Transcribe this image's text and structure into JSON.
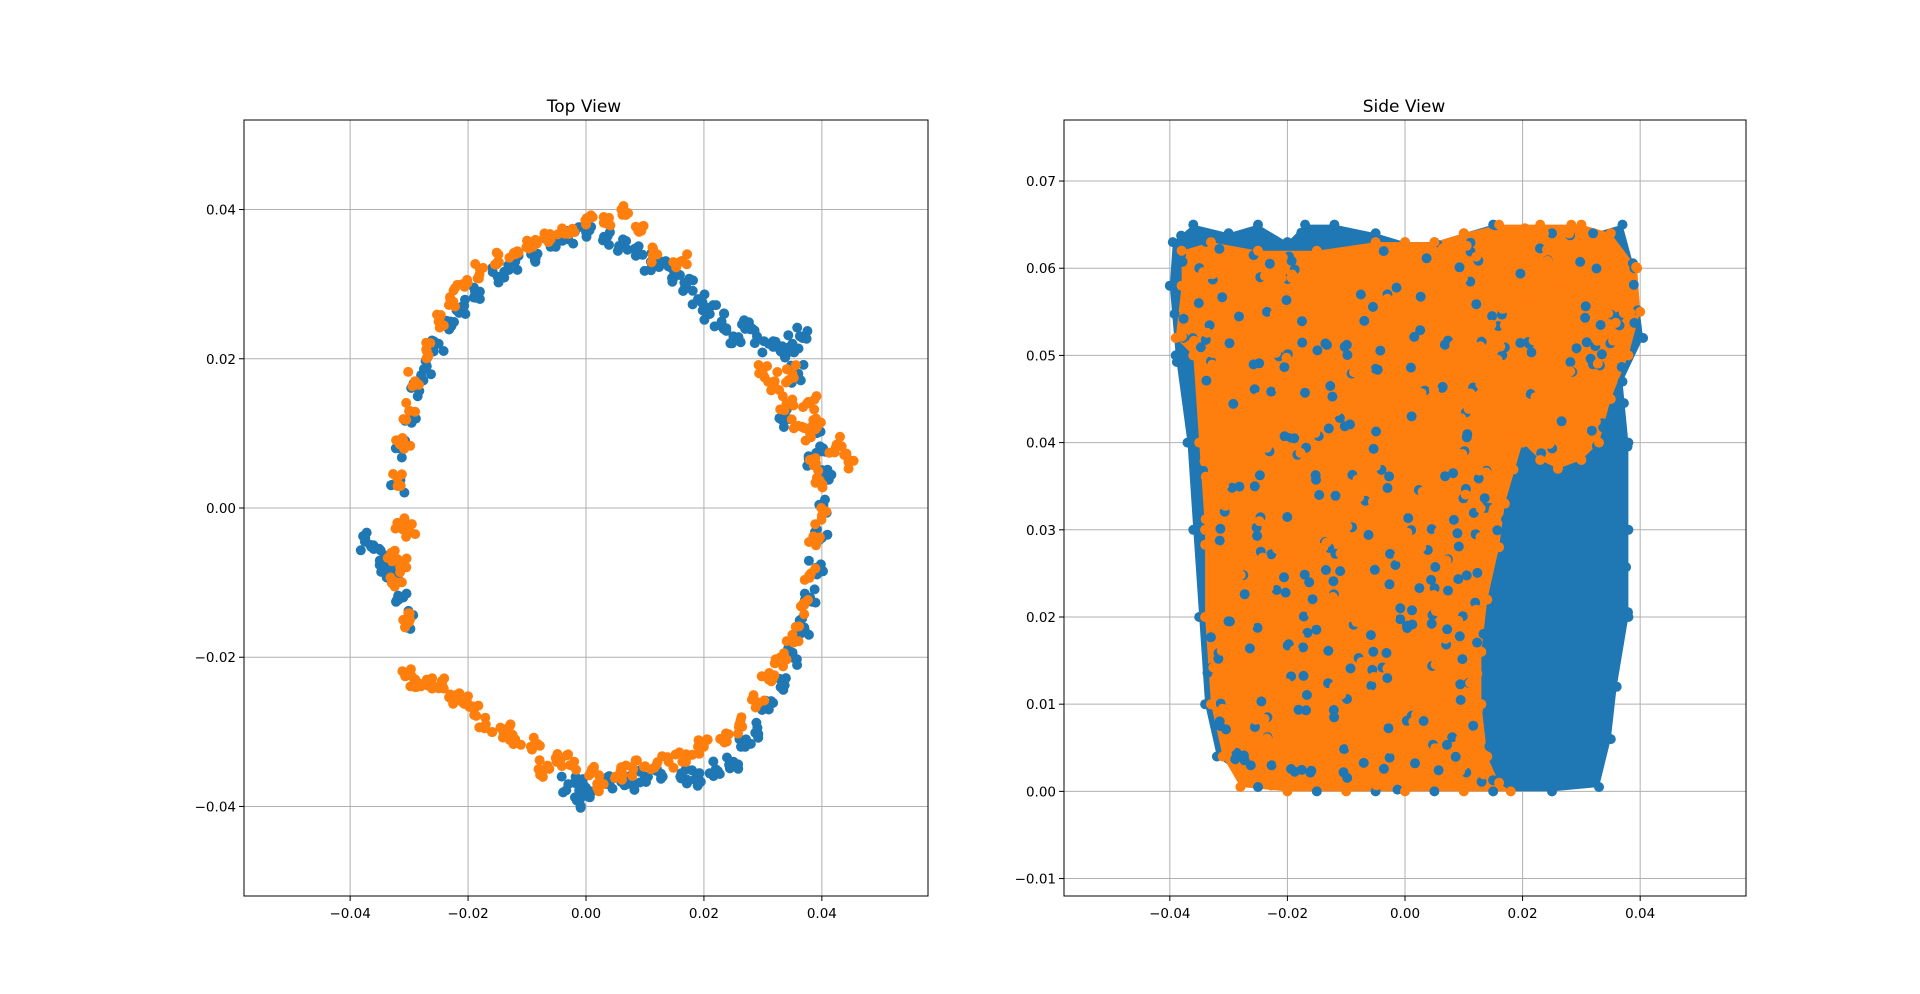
{
  "colors": {
    "series_blue": "#1f77b4",
    "series_orange": "#ff7f0e",
    "grid": "#b0b0b0",
    "axes": "#000000"
  },
  "chart_data": [
    {
      "type": "scatter",
      "title": "Top View",
      "xlabel": "",
      "ylabel": "",
      "xlim": [
        -0.058,
        0.058
      ],
      "ylim": [
        -0.052,
        0.052
      ],
      "xticks": [
        -0.04,
        -0.02,
        0.0,
        0.02,
        0.04
      ],
      "yticks": [
        -0.04,
        -0.02,
        0.0,
        0.02,
        0.04
      ],
      "xtick_labels": [
        "−0.04",
        "−0.02",
        "0.00",
        "0.02",
        "0.04"
      ],
      "ytick_labels": [
        "−0.04",
        "−0.02",
        "0.00",
        "0.02",
        "0.04"
      ],
      "grid": true,
      "series": [
        {
          "color": "#1f77b4",
          "points": [
            [
              -0.0375,
              -0.0045
            ],
            [
              -0.036,
              -0.0055
            ],
            [
              -0.0345,
              -0.0075
            ],
            [
              -0.033,
              -0.0085
            ],
            [
              -0.031,
              -0.012
            ],
            [
              -0.03,
              -0.015
            ],
            [
              -0.032,
              0.003
            ],
            [
              -0.0315,
              0.008
            ],
            [
              -0.03,
              0.012
            ],
            [
              -0.0285,
              0.016
            ],
            [
              -0.027,
              0.019
            ],
            [
              -0.025,
              0.022
            ],
            [
              -0.023,
              0.025
            ],
            [
              -0.021,
              0.027
            ],
            [
              -0.018,
              0.029
            ],
            [
              -0.015,
              0.031
            ],
            [
              -0.012,
              0.033
            ],
            [
              -0.009,
              0.034
            ],
            [
              -0.006,
              0.035
            ],
            [
              -0.003,
              0.036
            ],
            [
              0.0,
              0.037
            ],
            [
              0.003,
              0.036
            ],
            [
              0.006,
              0.035
            ],
            [
              0.009,
              0.034
            ],
            [
              0.011,
              0.033
            ],
            [
              0.013,
              0.033
            ],
            [
              0.015,
              0.031
            ],
            [
              0.017,
              0.03
            ],
            [
              0.019,
              0.028
            ],
            [
              0.021,
              0.026
            ],
            [
              0.023,
              0.025
            ],
            [
              0.025,
              0.023
            ],
            [
              0.027,
              0.024
            ],
            [
              0.029,
              0.023
            ],
            [
              0.031,
              0.022
            ],
            [
              0.033,
              0.021
            ],
            [
              0.035,
              0.022
            ],
            [
              0.037,
              0.023
            ],
            [
              0.039,
              0.011
            ],
            [
              0.04,
              0.008
            ],
            [
              0.041,
              0.004
            ],
            [
              0.04,
              0.0
            ],
            [
              0.04,
              -0.004
            ],
            [
              0.039,
              -0.008
            ],
            [
              0.038,
              -0.012
            ],
            [
              0.037,
              -0.016
            ],
            [
              0.035,
              -0.02
            ],
            [
              0.033,
              -0.024
            ],
            [
              0.031,
              -0.027
            ],
            [
              0.029,
              -0.03
            ],
            [
              0.027,
              -0.032
            ],
            [
              0.025,
              -0.034
            ],
            [
              0.022,
              -0.035
            ],
            [
              0.019,
              -0.036
            ],
            [
              0.016,
              -0.036
            ],
            [
              0.013,
              -0.036
            ],
            [
              0.01,
              -0.036
            ],
            [
              0.007,
              -0.037
            ],
            [
              0.004,
              -0.037
            ],
            [
              0.001,
              -0.038
            ],
            [
              -0.001,
              -0.039
            ],
            [
              -0.003,
              -0.037
            ],
            [
              0.0,
              -0.0375
            ],
            [
              0.034,
              0.012
            ],
            [
              0.036,
              0.018
            ],
            [
              0.0385,
              0.006
            ]
          ]
        },
        {
          "color": "#ff7f0e",
          "points": [
            [
              -0.032,
              0.004
            ],
            [
              -0.031,
              0.009
            ],
            [
              -0.03,
              0.013
            ],
            [
              -0.029,
              0.017
            ],
            [
              -0.027,
              0.021
            ],
            [
              -0.025,
              0.025
            ],
            [
              -0.023,
              0.028
            ],
            [
              -0.021,
              0.03
            ],
            [
              -0.018,
              0.032
            ],
            [
              -0.015,
              0.033
            ],
            [
              -0.012,
              0.034
            ],
            [
              -0.009,
              0.035
            ],
            [
              -0.006,
              0.036
            ],
            [
              -0.003,
              0.037
            ],
            [
              0.0,
              0.038
            ],
            [
              0.003,
              0.039
            ],
            [
              0.006,
              0.04
            ],
            [
              0.009,
              0.037
            ],
            [
              0.012,
              0.034
            ],
            [
              0.016,
              0.033
            ],
            [
              0.032,
              0.017
            ],
            [
              0.034,
              0.014
            ],
            [
              0.036,
              0.011
            ],
            [
              0.038,
              0.01
            ],
            [
              0.039,
              0.006
            ],
            [
              0.04,
              0.003
            ],
            [
              0.04,
              -0.001
            ],
            [
              0.039,
              -0.005
            ],
            [
              0.038,
              -0.009
            ],
            [
              0.037,
              -0.013
            ],
            [
              0.035,
              -0.017
            ],
            [
              0.033,
              -0.02
            ],
            [
              0.031,
              -0.023
            ],
            [
              0.029,
              -0.026
            ],
            [
              0.026,
              -0.029
            ],
            [
              0.023,
              -0.031
            ],
            [
              0.02,
              -0.032
            ],
            [
              0.017,
              -0.033
            ],
            [
              0.014,
              -0.034
            ],
            [
              0.011,
              -0.035
            ],
            [
              0.008,
              -0.035
            ],
            [
              0.005,
              -0.036
            ],
            [
              0.003,
              -0.037
            ],
            [
              0.001,
              -0.035
            ],
            [
              -0.002,
              -0.034
            ],
            [
              -0.005,
              -0.034
            ],
            [
              -0.007,
              -0.035
            ],
            [
              -0.009,
              -0.032
            ],
            [
              -0.012,
              -0.031
            ],
            [
              -0.014,
              -0.03
            ],
            [
              -0.017,
              -0.029
            ],
            [
              -0.019,
              -0.027
            ],
            [
              -0.021,
              -0.026
            ],
            [
              -0.023,
              -0.025
            ],
            [
              -0.025,
              -0.024
            ],
            [
              -0.027,
              -0.023
            ],
            [
              -0.029,
              -0.024
            ],
            [
              -0.03,
              -0.022
            ],
            [
              -0.031,
              -0.015
            ],
            [
              -0.032,
              -0.01
            ],
            [
              -0.033,
              -0.006
            ],
            [
              -0.032,
              -0.002
            ],
            [
              -0.031,
              -0.008
            ],
            [
              -0.03,
              -0.003
            ],
            [
              0.038,
              0.014
            ],
            [
              0.039,
              0.012
            ],
            [
              0.0425,
              0.0085
            ],
            [
              0.0445,
              0.0065
            ],
            [
              0.035,
              0.018
            ],
            [
              0.03,
              0.018
            ]
          ]
        }
      ]
    },
    {
      "type": "scatter",
      "title": "Side View",
      "xlabel": "",
      "ylabel": "",
      "xlim": [
        -0.058,
        0.058
      ],
      "ylim": [
        -0.012,
        0.077
      ],
      "xticks": [
        -0.04,
        -0.02,
        0.0,
        0.02,
        0.04
      ],
      "yticks": [
        -0.01,
        0.0,
        0.01,
        0.02,
        0.03,
        0.04,
        0.05,
        0.06,
        0.07
      ],
      "xtick_labels": [
        "−0.04",
        "−0.02",
        "0.00",
        "0.02",
        "0.04"
      ],
      "ytick_labels": [
        "−0.01",
        "0.00",
        "0.01",
        "0.02",
        "0.03",
        "0.04",
        "0.05",
        "0.06",
        "0.07"
      ],
      "grid": true,
      "series": [
        {
          "color": "#1f77b4",
          "region": {
            "outline": [
              [
                -0.0395,
                0.063
              ],
              [
                -0.036,
                0.065
              ],
              [
                -0.03,
                0.064
              ],
              [
                -0.025,
                0.065
              ],
              [
                -0.02,
                0.063
              ],
              [
                -0.017,
                0.065
              ],
              [
                -0.012,
                0.065
              ],
              [
                -0.005,
                0.064
              ],
              [
                0.0,
                0.063
              ],
              [
                0.005,
                0.063
              ],
              [
                0.01,
                0.064
              ],
              [
                0.015,
                0.065
              ],
              [
                0.025,
                0.064
              ],
              [
                0.032,
                0.064
              ],
              [
                0.037,
                0.065
              ],
              [
                0.039,
                0.06
              ],
              [
                0.0405,
                0.052
              ],
              [
                0.037,
                0.047
              ],
              [
                0.038,
                0.04
              ],
              [
                0.038,
                0.03
              ],
              [
                0.038,
                0.02
              ],
              [
                0.036,
                0.012
              ],
              [
                0.035,
                0.006
              ],
              [
                0.033,
                0.0005
              ],
              [
                0.025,
                0.0
              ],
              [
                0.015,
                0.0
              ],
              [
                0.005,
                0.0
              ],
              [
                -0.005,
                0.0
              ],
              [
                -0.015,
                0.0
              ],
              [
                -0.025,
                0.0005
              ],
              [
                -0.032,
                0.004
              ],
              [
                -0.034,
                0.01
              ],
              [
                -0.035,
                0.02
              ],
              [
                -0.036,
                0.03
              ],
              [
                -0.037,
                0.04
              ],
              [
                -0.039,
                0.05
              ],
              [
                -0.04,
                0.058
              ]
            ],
            "xmin": -0.04,
            "xmax": 0.0405,
            "ymin": 0.0,
            "ymax": 0.065
          }
        },
        {
          "color": "#ff7f0e",
          "region": {
            "outline": [
              [
                -0.038,
                0.062
              ],
              [
                -0.033,
                0.063
              ],
              [
                -0.025,
                0.062
              ],
              [
                -0.015,
                0.062
              ],
              [
                -0.005,
                0.063
              ],
              [
                0.0,
                0.063
              ],
              [
                0.005,
                0.063
              ],
              [
                0.01,
                0.064
              ],
              [
                0.016,
                0.065
              ],
              [
                0.023,
                0.065
              ],
              [
                0.03,
                0.065
              ],
              [
                0.035,
                0.064
              ],
              [
                0.0395,
                0.06
              ],
              [
                0.04,
                0.055
              ],
              [
                0.038,
                0.05
              ],
              [
                0.035,
                0.045
              ],
              [
                0.033,
                0.04
              ],
              [
                0.03,
                0.038
              ],
              [
                0.026,
                0.037
              ],
              [
                0.023,
                0.038
              ],
              [
                0.02,
                0.04
              ],
              [
                0.017,
                0.033
              ],
              [
                0.016,
                0.028
              ],
              [
                0.014,
                0.022
              ],
              [
                0.013,
                0.016
              ],
              [
                0.013,
                0.01
              ],
              [
                0.014,
                0.004
              ],
              [
                0.016,
                0.001
              ],
              [
                0.018,
                0.0
              ],
              [
                0.01,
                0.0
              ],
              [
                0.0,
                0.0
              ],
              [
                -0.01,
                0.0
              ],
              [
                -0.02,
                0.0
              ],
              [
                -0.028,
                0.0005
              ],
              [
                -0.031,
                0.004
              ],
              [
                -0.033,
                0.01
              ],
              [
                -0.034,
                0.02
              ],
              [
                -0.034,
                0.03
              ],
              [
                -0.035,
                0.04
              ],
              [
                -0.036,
                0.05
              ],
              [
                -0.039,
                0.052
              ],
              [
                -0.038,
                0.058
              ]
            ],
            "xmin": -0.039,
            "xmax": 0.04,
            "ymin": 0.0,
            "ymax": 0.065
          }
        }
      ]
    }
  ]
}
